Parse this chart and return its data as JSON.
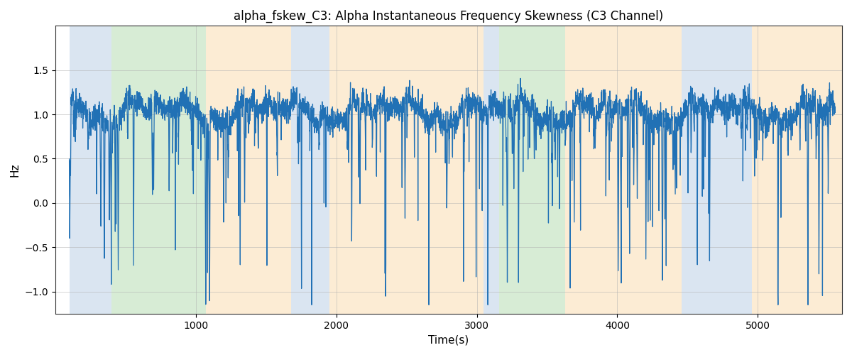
{
  "title": "alpha_fskew_C3: Alpha Instantaneous Frequency Skewness (C3 Channel)",
  "xlabel": "Time(s)",
  "ylabel": "Hz",
  "xlim": [
    0,
    5600
  ],
  "ylim": [
    -1.25,
    2.0
  ],
  "yticks": [
    -1.0,
    -0.5,
    0.0,
    0.5,
    1.0,
    1.5
  ],
  "xticks": [
    1000,
    2000,
    3000,
    4000,
    5000
  ],
  "line_color": "#2171b5",
  "line_width": 0.9,
  "regions": [
    {
      "xmin": 100,
      "xmax": 400,
      "color": "#adc6e0",
      "alpha": 0.45
    },
    {
      "xmin": 400,
      "xmax": 1070,
      "color": "#a8d5a2",
      "alpha": 0.45
    },
    {
      "xmin": 1070,
      "xmax": 1680,
      "color": "#f9d5a0",
      "alpha": 0.45
    },
    {
      "xmin": 1680,
      "xmax": 1950,
      "color": "#adc6e0",
      "alpha": 0.45
    },
    {
      "xmin": 1950,
      "xmax": 3050,
      "color": "#f9d5a0",
      "alpha": 0.45
    },
    {
      "xmin": 3050,
      "xmax": 3160,
      "color": "#adc6e0",
      "alpha": 0.45
    },
    {
      "xmin": 3160,
      "xmax": 3630,
      "color": "#a8d5a2",
      "alpha": 0.45
    },
    {
      "xmin": 3630,
      "xmax": 3720,
      "color": "#f9d5a0",
      "alpha": 0.45
    },
    {
      "xmin": 3720,
      "xmax": 4460,
      "color": "#f9d5a0",
      "alpha": 0.45
    },
    {
      "xmin": 4460,
      "xmax": 4960,
      "color": "#adc6e0",
      "alpha": 0.45
    },
    {
      "xmin": 4960,
      "xmax": 5600,
      "color": "#f9d5a0",
      "alpha": 0.45
    }
  ],
  "seed": 2023,
  "n_points": 5400
}
